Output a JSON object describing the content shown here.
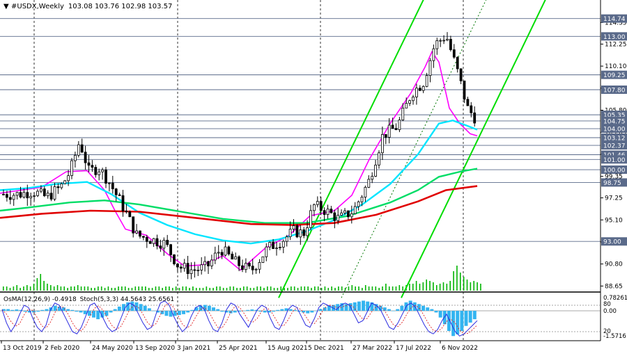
{
  "header": {
    "symbol": "#USDX",
    "timeframe": "Weekly",
    "ohlc": "103.08 103.76 102.98 103.57"
  },
  "osc_header": {
    "osma": "OsMA(12,26,9) -0.4918",
    "stoch": "Stoch(5,3,3) 44.5643 25.6561"
  },
  "colors": {
    "ema_fast": "#ff00ff",
    "ema_mid": "#00e5ff",
    "ema_slow": "#00dd66",
    "ema_long": "#e00000",
    "channel": "#00dd00",
    "histogram": "#33b4f0",
    "stoch_main": "#2a2ae0",
    "stoch_signal": "#e02020",
    "candle": "#000000"
  },
  "chart_data": [
    {
      "type": "candlestick",
      "title": "#USDX,Weekly",
      "x_ticks": [
        "13 Oct 2019",
        "2 Feb 2020",
        "24 May 2020",
        "13 Sep 2020",
        "3 Jan 2021",
        "25 Apr 2021",
        "15 Aug 2021",
        "5 Dec 2021",
        "27 Mar 2022",
        "17 Jul 2022",
        "6 Nov 2022"
      ],
      "y_ticks": [
        114.35,
        112.25,
        110.1,
        107.95,
        105.8,
        103.65,
        101.5,
        99.35,
        97.25,
        95.1,
        92.95,
        90.8,
        88.65
      ],
      "ylim": [
        88.2,
        115.6
      ],
      "grid": true,
      "level_lines": [
        {
          "label": "114.74",
          "value": 114.74
        },
        {
          "label": "113.00",
          "value": 113.0
        },
        {
          "label": "109.25",
          "value": 109.25
        },
        {
          "label": "107.80",
          "value": 107.8
        },
        {
          "label": "105.35",
          "value": 105.35
        },
        {
          "label": "104.75",
          "value": 104.75
        },
        {
          "label": "104.00",
          "value": 104.0
        },
        {
          "label": "103.12",
          "value": 103.12
        },
        {
          "label": "102.37",
          "value": 102.37
        },
        {
          "label": "101.46",
          "value": 101.46
        },
        {
          "label": "101.00",
          "value": 101.0
        },
        {
          "label": "100.00",
          "value": 100.0
        },
        {
          "label": "98.75",
          "value": 98.75
        },
        {
          "label": "93.00",
          "value": 93.0
        }
      ],
      "close_path": [
        [
          "13 Oct 2019",
          97.6
        ],
        [
          "24 Nov 2019",
          97.9
        ],
        [
          "5 Jan 2020",
          97.3
        ],
        [
          "2 Feb 2020",
          98.3
        ],
        [
          "1 Mar 2020",
          99.8
        ],
        [
          "8 Mar 2020",
          102.8
        ],
        [
          "22 Mar 2020",
          99.8
        ],
        [
          "19 Apr 2020",
          100.2
        ],
        [
          "24 May 2020",
          99.0
        ],
        [
          "5 Jul 2020",
          96.5
        ],
        [
          "2 Aug 2020",
          93.6
        ],
        [
          "13 Sep 2020",
          93.2
        ],
        [
          "25 Oct 2020",
          92.8
        ],
        [
          "6 Dec 2020",
          90.5
        ],
        [
          "3 Jan 2021",
          90.2
        ],
        [
          "7 Feb 2021",
          90.5
        ],
        [
          "7 Mar 2021",
          92.3
        ],
        [
          "25 Apr 2021",
          91.0
        ],
        [
          "23 May 2021",
          90.1
        ],
        [
          "27 Jun 2021",
          92.3
        ],
        [
          "15 Aug 2021",
          93.2
        ],
        [
          "26 Sep 2021",
          94.0
        ],
        [
          "24 Oct 2021",
          93.8
        ],
        [
          "21 Nov 2021",
          96.5
        ],
        [
          "5 Dec 2021",
          96.1
        ],
        [
          "9 Jan 2022",
          95.2
        ],
        [
          "6 Feb 2022",
          96.0
        ],
        [
          "27 Mar 2022",
          98.8
        ],
        [
          "1 May 2022",
          103.4
        ],
        [
          "12 Jun 2022",
          104.2
        ],
        [
          "17 Jul 2022",
          107.5
        ],
        [
          "7 Aug 2022",
          108.5
        ],
        [
          "25 Sep 2022",
          112.2
        ],
        [
          "16 Oct 2022",
          113.1
        ],
        [
          "6 Nov 2022",
          109.5
        ],
        [
          "20 Nov 2022",
          106.0
        ],
        [
          "11 Dec 2022",
          104.8
        ],
        [
          "8 Jan 2023",
          102.4
        ],
        [
          "22 Jan 2023",
          102.0
        ],
        [
          "5 Feb 2023",
          103.57
        ]
      ],
      "series": [
        {
          "color": "#ff00ff",
          "values": [
            [
              0,
              97.7
            ],
            [
              20,
              97.9
            ],
            [
              60,
              98.3
            ],
            [
              95,
              99.8
            ],
            [
              125,
              99.9
            ],
            [
              150,
              98.0
            ],
            [
              165,
              96.0
            ],
            [
              180,
              94.2
            ],
            [
              210,
              93.6
            ],
            [
              240,
              91.8
            ],
            [
              265,
              90.6
            ],
            [
              290,
              90.7
            ],
            [
              320,
              91.6
            ],
            [
              345,
              90.2
            ],
            [
              380,
              92.3
            ],
            [
              415,
              93.6
            ],
            [
              445,
              95.5
            ],
            [
              480,
              96.0
            ],
            [
              505,
              97.5
            ],
            [
              530,
              101.0
            ],
            [
              560,
              104.5
            ],
            [
              590,
              107.5
            ],
            [
              610,
              110.0
            ],
            [
              620,
              111.5
            ],
            [
              630,
              110.5
            ],
            [
              645,
              106.0
            ],
            [
              660,
              104.5
            ],
            [
              675,
              103.5
            ],
            [
              685,
              103.3
            ]
          ]
        },
        {
          "color": "#00e5ff",
          "values": [
            [
              0,
              98.0
            ],
            [
              40,
              98.2
            ],
            [
              80,
              98.6
            ],
            [
              125,
              98.8
            ],
            [
              160,
              97.6
            ],
            [
              200,
              95.8
            ],
            [
              240,
              94.6
            ],
            [
              280,
              93.7
            ],
            [
              320,
              93.1
            ],
            [
              360,
              92.8
            ],
            [
              400,
              93.2
            ],
            [
              440,
              94.0
            ],
            [
              480,
              95.1
            ],
            [
              520,
              96.6
            ],
            [
              560,
              98.6
            ],
            [
              600,
              101.5
            ],
            [
              630,
              104.5
            ],
            [
              650,
              104.8
            ],
            [
              670,
              104.3
            ],
            [
              685,
              103.9
            ]
          ]
        },
        {
          "color": "#00dd66",
          "values": [
            [
              0,
              96.0
            ],
            [
              40,
              96.3
            ],
            [
              100,
              96.8
            ],
            [
              150,
              97.0
            ],
            [
              200,
              96.6
            ],
            [
              260,
              95.9
            ],
            [
              320,
              95.2
            ],
            [
              380,
              94.8
            ],
            [
              440,
              94.8
            ],
            [
              500,
              95.5
            ],
            [
              560,
              96.8
            ],
            [
              600,
              98.0
            ],
            [
              630,
              99.3
            ],
            [
              660,
              99.8
            ],
            [
              685,
              100.1
            ]
          ]
        },
        {
          "color": "#e00000",
          "values": [
            [
              0,
              95.3
            ],
            [
              60,
              95.7
            ],
            [
              130,
              96.0
            ],
            [
              200,
              95.9
            ],
            [
              280,
              95.3
            ],
            [
              360,
              94.7
            ],
            [
              420,
              94.6
            ],
            [
              480,
              94.8
            ],
            [
              540,
              95.6
            ],
            [
              600,
              96.9
            ],
            [
              640,
              98.0
            ],
            [
              685,
              98.4
            ]
          ]
        }
      ],
      "channel_lines": [
        {
          "from": [
            400,
            87.5
          ],
          "to": [
            618,
            118.0
          ]
        },
        {
          "from": [
            576,
            87.5
          ],
          "to": [
            793,
            118.0
          ]
        },
        {
          "from": [
            490,
            87.5
          ],
          "to": [
            708,
            118.0
          ],
          "style": "dotted"
        }
      ],
      "volume": [
        3,
        3,
        2,
        3,
        4,
        2,
        3,
        4,
        3,
        5,
        9,
        12,
        7,
        5,
        4,
        3,
        4,
        3,
        3,
        2,
        3,
        3,
        4,
        3,
        3,
        3,
        2,
        2,
        3,
        3,
        2,
        3,
        2,
        2,
        3,
        3,
        3,
        2,
        2,
        3,
        3,
        3,
        3,
        2,
        2,
        3,
        3,
        2,
        3,
        3,
        2,
        3,
        2,
        3,
        3,
        2,
        3,
        2,
        2,
        2,
        3,
        2,
        2,
        3,
        3,
        2,
        2,
        3,
        3,
        2,
        2,
        3,
        3,
        2,
        2,
        3,
        3,
        2,
        3,
        3,
        2,
        2,
        3,
        2,
        2,
        3,
        3,
        2,
        3,
        3,
        3,
        2,
        3,
        3,
        2,
        3,
        2,
        3,
        2,
        3,
        3,
        2,
        3,
        4,
        3,
        3,
        2,
        4,
        3,
        3,
        3,
        2,
        3,
        5,
        3,
        3,
        3,
        4,
        3,
        4,
        5,
        5,
        7,
        5,
        6,
        8,
        7,
        6,
        4,
        5,
        6,
        5,
        7,
        14,
        18,
        13,
        10,
        8,
        6,
        7,
        6,
        5
      ]
    },
    {
      "type": "oscillator",
      "title": "OsMA(12,26,9) -0.4918 Stoch(5,3,3) 44.5643 25.6561",
      "y_ticks_left": [
        "0.782615",
        "0.00",
        "-1.5716"
      ],
      "y_ticks_right": [
        "80",
        "20"
      ],
      "osma_histogram": [
        0.1,
        0.1,
        0.05,
        0.08,
        0.05,
        -0.05,
        -0.1,
        -0.1,
        -0.05,
        0.05,
        0.1,
        0.2,
        0.3,
        0.25,
        0.2,
        0.1,
        0.05,
        -0.05,
        -0.1,
        -0.2,
        -0.3,
        -0.4,
        -0.5,
        -0.4,
        -0.3,
        -0.1,
        0.1,
        0.25,
        0.4,
        0.5,
        0.55,
        0.5,
        0.4,
        0.3,
        0.15,
        0.0,
        -0.1,
        -0.2,
        -0.3,
        -0.35,
        -0.3,
        -0.25,
        -0.2,
        -0.1,
        0.05,
        0.2,
        0.3,
        0.35,
        0.3,
        0.2,
        0.1,
        -0.05,
        -0.1,
        -0.15,
        -0.1,
        -0.05,
        0.0,
        0.05,
        0.08,
        0.05,
        -0.05,
        -0.1,
        -0.1,
        -0.05,
        0.05,
        0.1,
        0.15,
        0.1,
        0.05,
        -0.05,
        -0.1,
        -0.15,
        -0.1,
        0.0,
        0.1,
        0.2,
        0.3,
        0.35,
        0.4,
        0.45,
        0.4,
        0.45,
        0.5,
        0.55,
        0.6,
        0.55,
        0.5,
        0.4,
        0.3,
        0.2,
        0.1,
        0.0,
        0.1,
        0.3,
        0.5,
        0.6,
        0.5,
        0.4,
        0.3,
        0.2,
        0.1,
        -0.1,
        -0.4,
        -0.8,
        -1.2,
        -1.5,
        -1.4,
        -1.2,
        -0.9,
        -0.7,
        -0.5
      ],
      "stoch_main": [
        70,
        40,
        20,
        35,
        60,
        80,
        75,
        50,
        30,
        20,
        35,
        70,
        85,
        80,
        60,
        40,
        20,
        15,
        30,
        55,
        80,
        85,
        70,
        50,
        30,
        20,
        25,
        50,
        75,
        85,
        80,
        60,
        40,
        25,
        30,
        60,
        85,
        90,
        80,
        55,
        35,
        20,
        30,
        55,
        75,
        80,
        70,
        45,
        25,
        20,
        40,
        70,
        85,
        80,
        60,
        45,
        30,
        50,
        70,
        80,
        75,
        50,
        30,
        25,
        45,
        70,
        80,
        75,
        55,
        35,
        30,
        50,
        75,
        85,
        80,
        75,
        70,
        80,
        85,
        80,
        60,
        40,
        45,
        65,
        85,
        80,
        70,
        50,
        30,
        25,
        40,
        60,
        80,
        85,
        75,
        55,
        35,
        20,
        15,
        25,
        45,
        60,
        40,
        20,
        10,
        15,
        25,
        35,
        45
      ]
    }
  ]
}
